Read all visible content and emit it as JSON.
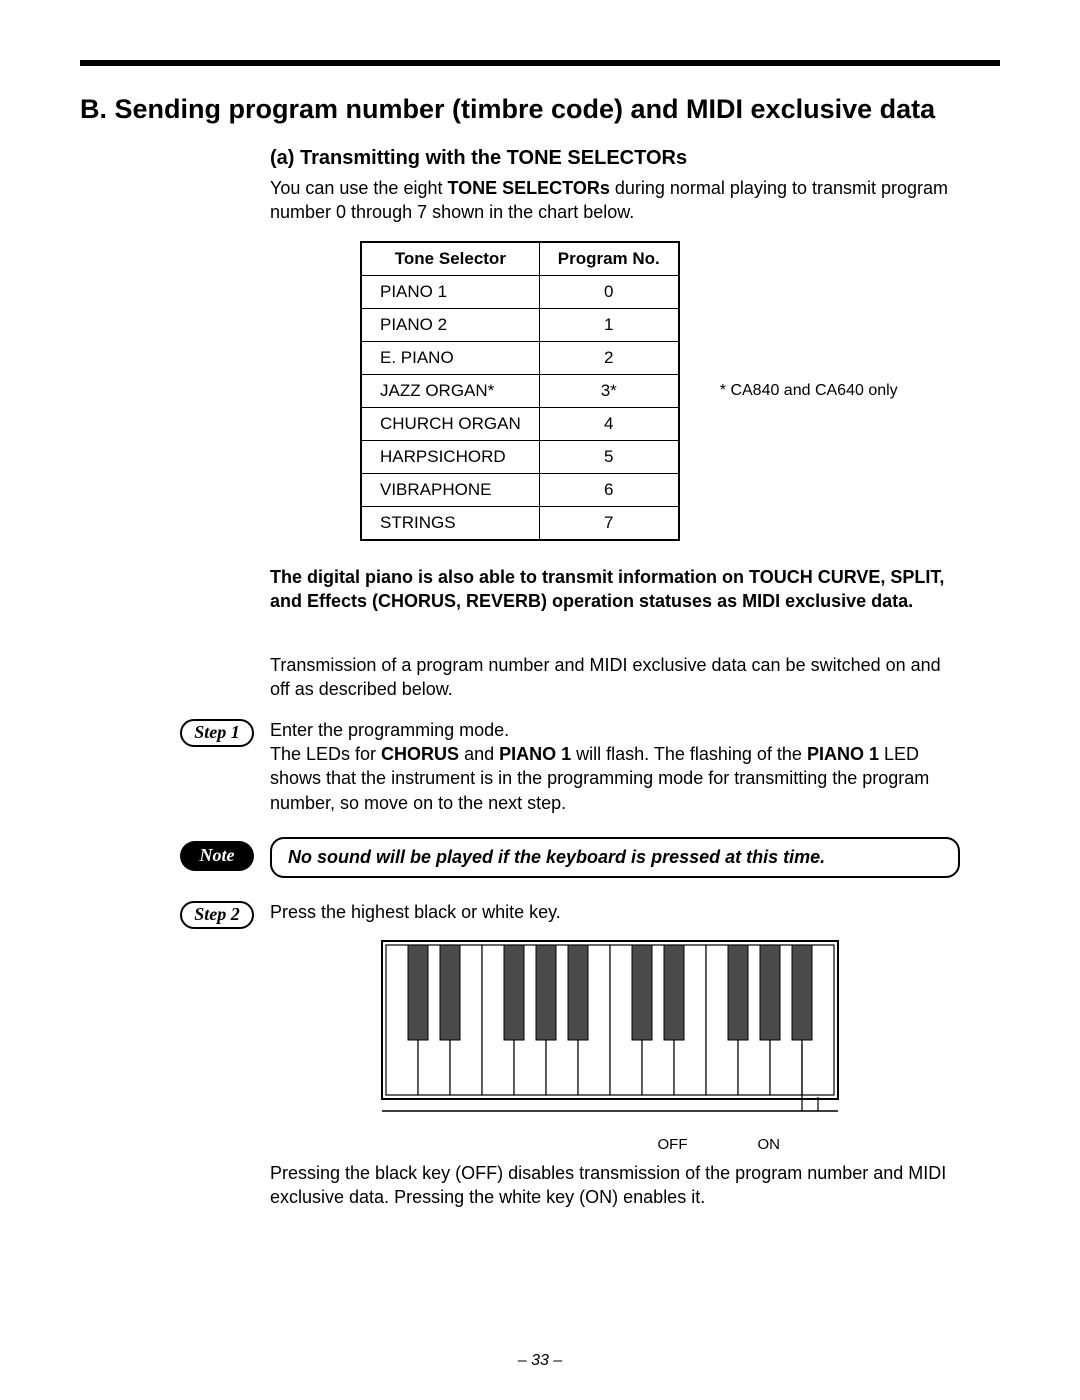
{
  "heading": "B. Sending program number (timbre code) and MIDI exclusive data",
  "sub_a": {
    "title": "(a) Transmitting with the TONE SELECTORs",
    "intro_pre": "You can use the eight ",
    "intro_bold": "TONE SELECTORs",
    "intro_post": " during normal playing to transmit program number 0 through 7 shown in the chart below."
  },
  "table": {
    "headers": [
      "Tone Selector",
      "Program No."
    ],
    "rows": [
      [
        "PIANO 1",
        "0"
      ],
      [
        "PIANO 2",
        "1"
      ],
      [
        "E. PIANO",
        "2"
      ],
      [
        "JAZZ ORGAN*",
        "3*"
      ],
      [
        "CHURCH ORGAN",
        "4"
      ],
      [
        "HARPSICHORD",
        "5"
      ],
      [
        "VIBRAPHONE",
        "6"
      ],
      [
        "STRINGS",
        "7"
      ]
    ],
    "side_note": "* CA840 and CA640 only"
  },
  "bold_para": "The digital piano is also able to transmit information on TOUCH CURVE, SPLIT, and Effects (CHORUS, REVERB) operation statuses as MIDI exclusive data.",
  "transmission_para": "Transmission of a program number and MIDI exclusive data can be switched on and off as described below.",
  "step1": {
    "label": "Step 1",
    "line1": "Enter the programming mode.",
    "line2_pre": "The LEDs for ",
    "line2_b1": "CHORUS",
    "line2_mid1": " and ",
    "line2_b2": "PIANO 1",
    "line2_mid2": " will flash.  The flashing of the ",
    "line2_b3": "PIANO 1",
    "line2_post": " LED shows that the instrument is in the programming mode for transmitting the program number, so move on to the next step."
  },
  "note": {
    "label": "Note",
    "text": "No sound will be played if the keyboard is pressed at this time."
  },
  "step2": {
    "label": "Step 2",
    "text": "Press the highest black or white key."
  },
  "kb_labels": {
    "off": "OFF",
    "on": "ON"
  },
  "closing": "Pressing the black key (OFF) disables transmission of the program number and MIDI exclusive data. Pressing the white key (ON) enables it.",
  "page_num": "– 33 –",
  "colors": {
    "text": "#000000",
    "bg": "#ffffff",
    "black_key": "#4a4a4a"
  },
  "keyboard": {
    "white_keys": 14,
    "white_key_w": 32,
    "white_key_h": 150,
    "black_key_w": 20,
    "black_key_h": 95,
    "black_positions": [
      0,
      1,
      3,
      4,
      5,
      7,
      8,
      10,
      11,
      12
    ]
  }
}
